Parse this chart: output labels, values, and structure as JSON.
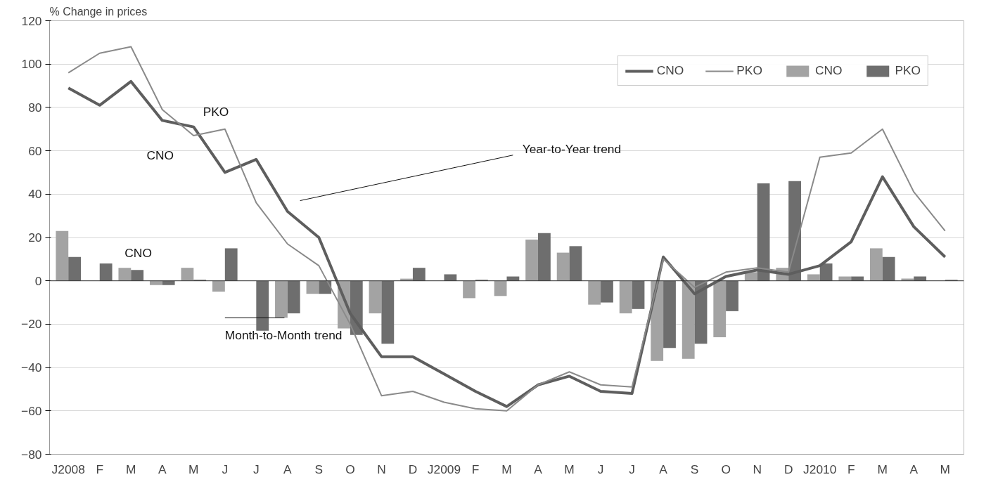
{
  "chart_data": {
    "type": "bar",
    "ylabel": "% Change in prices",
    "categories": [
      "J2008",
      "F",
      "M",
      "A",
      "M",
      "J",
      "J",
      "A",
      "S",
      "O",
      "N",
      "D",
      "J2009",
      "F",
      "M",
      "A",
      "M",
      "J",
      "J",
      "A",
      "S",
      "O",
      "N",
      "D",
      "J2010",
      "F",
      "M",
      "A",
      "M"
    ],
    "series": [
      {
        "name": "CNO",
        "color": "#a3a3a3",
        "values": [
          23,
          0,
          6,
          -2,
          6,
          -5,
          0,
          -17,
          -6,
          -22,
          -15,
          1,
          0,
          -8,
          -7,
          19,
          13,
          -11,
          -15,
          -37,
          -36,
          -26,
          4,
          6,
          3,
          2,
          15,
          1,
          0
        ]
      },
      {
        "name": "PKO",
        "color": "#6e6e6e",
        "values": [
          11,
          8,
          5,
          -2,
          0.5,
          15,
          -23,
          -15,
          -6,
          -25,
          -29,
          6,
          3,
          0.5,
          2,
          22,
          16,
          -10,
          -13,
          -31,
          -29,
          -14,
          45,
          46,
          8,
          2,
          11,
          2,
          0.5
        ]
      },
      {
        "name": "CNO",
        "type": "line",
        "color": "#5e5e5e",
        "values": [
          89,
          81,
          92,
          74,
          71,
          50,
          56,
          32,
          20,
          -15,
          -35,
          -35,
          -43,
          -51,
          -58,
          -48,
          -44,
          -51,
          -52,
          11,
          -6,
          2,
          5,
          3,
          7,
          18,
          48,
          25,
          11
        ]
      },
      {
        "name": "PKO",
        "type": "line",
        "color": "#8a8a8a",
        "values": [
          96,
          105,
          108,
          79,
          67,
          70,
          36,
          17,
          7,
          -20,
          -53,
          -51,
          -56,
          -59,
          -60,
          -48,
          -42,
          -48,
          -49,
          10,
          -3,
          4,
          6,
          4,
          57,
          59,
          70,
          41,
          23
        ]
      }
    ],
    "ylim": [
      -80,
      120
    ],
    "yticks": [
      -80,
      -60,
      -40,
      -20,
      0,
      20,
      40,
      60,
      80,
      100,
      120
    ],
    "grid": "y",
    "legend": "top right",
    "annotations": [
      "PKO",
      "CNO",
      "CNO",
      "Year-to-Year trend",
      {
        "text": "Month-to-Month trend",
        "y": -17
      }
    ]
  }
}
